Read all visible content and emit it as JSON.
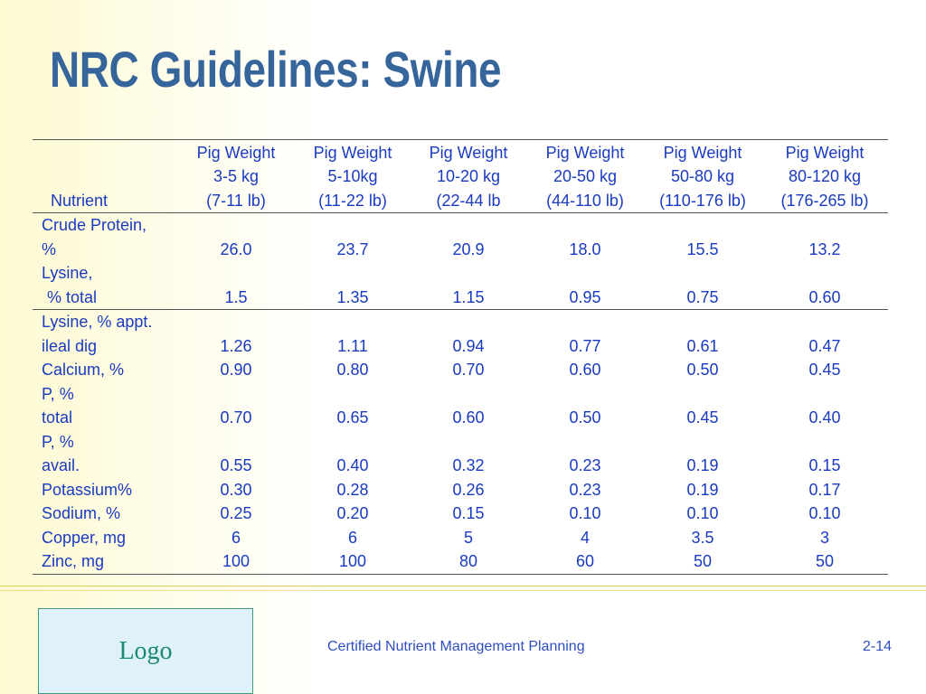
{
  "slide": {
    "title": "NRC Guidelines: Swine",
    "footer_text": "Certified Nutrient Management Planning",
    "page_number": "2-14",
    "logo_text": "Logo"
  },
  "table": {
    "header": {
      "nutrient": "Nutrient",
      "columns": [
        [
          "Pig Weight",
          "3-5 kg",
          "(7-11 lb)"
        ],
        [
          "Pig Weight",
          "5-10kg",
          "(11-22 lb)"
        ],
        [
          "Pig Weight",
          "10-20 kg",
          "(22-44 lb"
        ],
        [
          "Pig Weight",
          "20-50 kg",
          "(44-110 lb)"
        ],
        [
          "Pig Weight",
          "50-80 kg",
          "(110-176 lb)"
        ],
        [
          "Pig Weight",
          "80-120 kg",
          "(176-265 lb)"
        ]
      ]
    },
    "rows": [
      {
        "name1": "Crude Protein,",
        "name2": "%",
        "values": [
          "26.0",
          "23.7",
          "20.9",
          "18.0",
          "15.5",
          "13.2"
        ]
      },
      {
        "name1": "Lysine,",
        "name2": "% total",
        "values": [
          "1.5",
          "1.35",
          "1.15",
          "0.95",
          "0.75",
          "0.60"
        ]
      },
      {
        "name1": "Lysine, % appt.",
        "name2": "ileal dig",
        "values": [
          "1.26",
          "1.11",
          "0.94",
          "0.77",
          "0.61",
          "0.47"
        ]
      },
      {
        "name": "Calcium, %",
        "values": [
          "0.90",
          "0.80",
          "0.70",
          "0.60",
          "0.50",
          "0.45"
        ]
      },
      {
        "name1": "P, %",
        "name2": "total",
        "values": [
          "0.70",
          "0.65",
          "0.60",
          "0.50",
          "0.45",
          "0.40"
        ]
      },
      {
        "name1": "P, %",
        "name2": "avail.",
        "values": [
          "0.55",
          "0.40",
          "0.32",
          "0.23",
          "0.19",
          "0.15"
        ]
      },
      {
        "name": "Potassium%",
        "values": [
          "0.30",
          "0.28",
          "0.26",
          "0.23",
          "0.19",
          "0.17"
        ]
      },
      {
        "name": "Sodium, %",
        "values": [
          "0.25",
          "0.20",
          "0.15",
          "0.10",
          "0.10",
          "0.10"
        ]
      },
      {
        "name": "Copper, mg",
        "values": [
          "6",
          "6",
          "5",
          "4",
          "3.5",
          "3"
        ]
      },
      {
        "name": "Zinc, mg",
        "values": [
          "100",
          "100",
          "80",
          "60",
          "50",
          "50"
        ]
      }
    ]
  }
}
